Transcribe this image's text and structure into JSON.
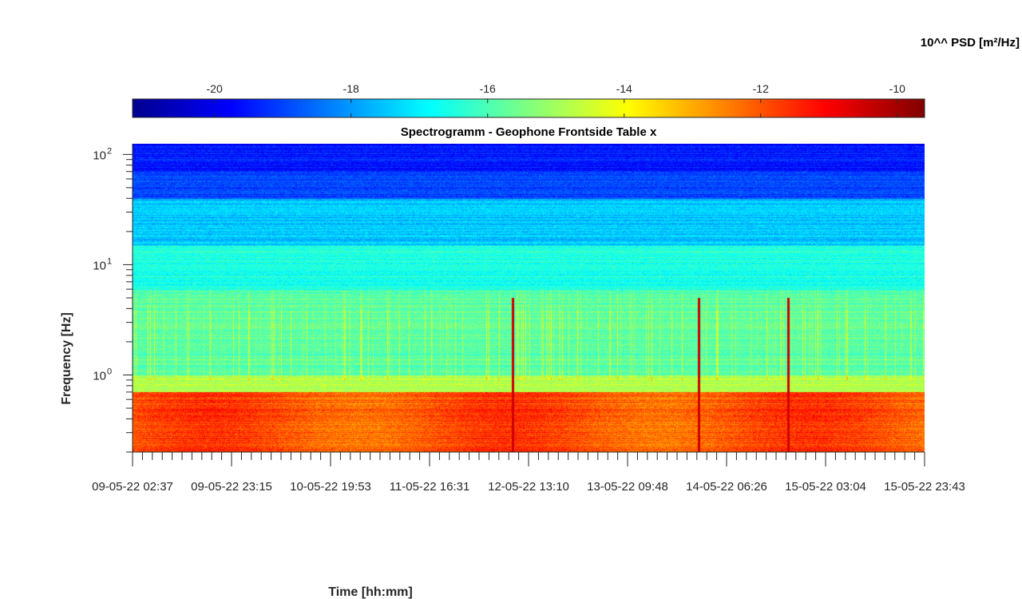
{
  "chart_data": {
    "type": "heatmap",
    "title": "Spectrogramm - Geophone Frontside Table x",
    "xlabel": "Time [hh:mm]",
    "ylabel": "Frequency [Hz]",
    "colorbar_title": "10^^ PSD [m²/Hz]",
    "colormap": "jet",
    "color_range": [
      -21.2,
      -9.6
    ],
    "colorbar_ticks": [
      "-20",
      "-18",
      "-16",
      "-14",
      "-12",
      "-10"
    ],
    "colorbar_tick_values": [
      -20,
      -18,
      -16,
      -14,
      -12,
      -10
    ],
    "y_scale": "log",
    "ylim": [
      0.2,
      125
    ],
    "y_ticks": [
      {
        "base": "10",
        "exp": "0",
        "value": 1
      },
      {
        "base": "10",
        "exp": "1",
        "value": 10
      },
      {
        "base": "10",
        "exp": "2",
        "value": 100
      }
    ],
    "x_ticks": [
      "09-05-22 02:37",
      "09-05-22 23:15",
      "10-05-22 19:53",
      "11-05-22 16:31",
      "12-05-22 13:10",
      "13-05-22 09:48",
      "14-05-22 06:26",
      "15-05-22 03:04",
      "15-05-22 23:43"
    ],
    "approx_band_values": [
      {
        "freq_range_hz": [
          70,
          125
        ],
        "log10_psd": -19.5
      },
      {
        "freq_range_hz": [
          40,
          70
        ],
        "log10_psd": -19.0
      },
      {
        "freq_range_hz": [
          15,
          40
        ],
        "log10_psd": -17.5
      },
      {
        "freq_range_hz": [
          6,
          15
        ],
        "log10_psd": -16.5
      },
      {
        "freq_range_hz": [
          1,
          6
        ],
        "log10_psd": -15.8
      },
      {
        "freq_range_hz": [
          0.7,
          1
        ],
        "log10_psd": -14.8
      },
      {
        "freq_range_hz": [
          0.2,
          0.7
        ],
        "log10_psd": -12.0
      }
    ],
    "grid": false
  }
}
